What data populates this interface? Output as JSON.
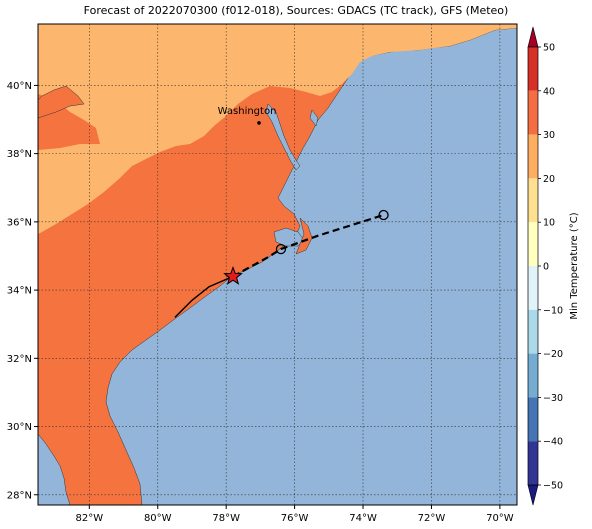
{
  "title": "Forecast of 2022070300 (f012-018), Sources: GDACS (TC track), GFS (Meteo)",
  "map": {
    "lon_range": [
      -83.5,
      -69.5
    ],
    "lat_range": [
      27.7,
      41.8
    ],
    "x_ticks": [
      {
        "value": -82,
        "label": "82°W"
      },
      {
        "value": -80,
        "label": "80°W"
      },
      {
        "value": -78,
        "label": "78°W"
      },
      {
        "value": -76,
        "label": "76°W"
      },
      {
        "value": -74,
        "label": "74°W"
      },
      {
        "value": -72,
        "label": "72°W"
      },
      {
        "value": -70,
        "label": "70°W"
      }
    ],
    "y_ticks": [
      {
        "value": 28,
        "label": "28°N"
      },
      {
        "value": 30,
        "label": "30°N"
      },
      {
        "value": 32,
        "label": "32°N"
      },
      {
        "value": 34,
        "label": "34°N"
      },
      {
        "value": 36,
        "label": "36°N"
      },
      {
        "value": 38,
        "label": "38°N"
      },
      {
        "value": 40,
        "label": "40°N"
      }
    ],
    "gridlines": true,
    "city": {
      "name": "Washington",
      "lon": -77.04,
      "lat": 38.9
    },
    "storm_position": {
      "lon": -77.8,
      "lat": 34.4
    },
    "past_track": [
      [
        -79.5,
        33.2
      ],
      [
        -79.0,
        33.7
      ],
      [
        -78.5,
        34.1
      ],
      [
        -77.8,
        34.4
      ]
    ],
    "forecast_track": [
      [
        -77.8,
        34.4
      ],
      [
        -76.8,
        34.95
      ],
      [
        -76.4,
        35.2
      ],
      [
        -75.3,
        35.6
      ],
      [
        -73.4,
        36.2
      ]
    ],
    "forecast_points": [
      {
        "lon": -76.4,
        "lat": 35.2
      },
      {
        "lon": -73.4,
        "lat": 36.2
      }
    ],
    "colors": {
      "ocean": "#92b5d9",
      "land_warm": "#f4733f",
      "land_cool": "#fdb66d"
    }
  },
  "colorbar": {
    "label": "Min Temperature (°C)",
    "ticks": [
      "50",
      "40",
      "30",
      "20",
      "10",
      "0",
      "−10",
      "−20",
      "−30",
      "−40",
      "−50"
    ],
    "min": -50,
    "max": 50,
    "colors_top_to_bottom": [
      "#a50026",
      "#d73027",
      "#f46d43",
      "#fdae61",
      "#fee090",
      "#ffffbf",
      "#e0f3f8",
      "#abd9e9",
      "#74add1",
      "#4575b4",
      "#313695",
      "#1a1a80"
    ]
  }
}
